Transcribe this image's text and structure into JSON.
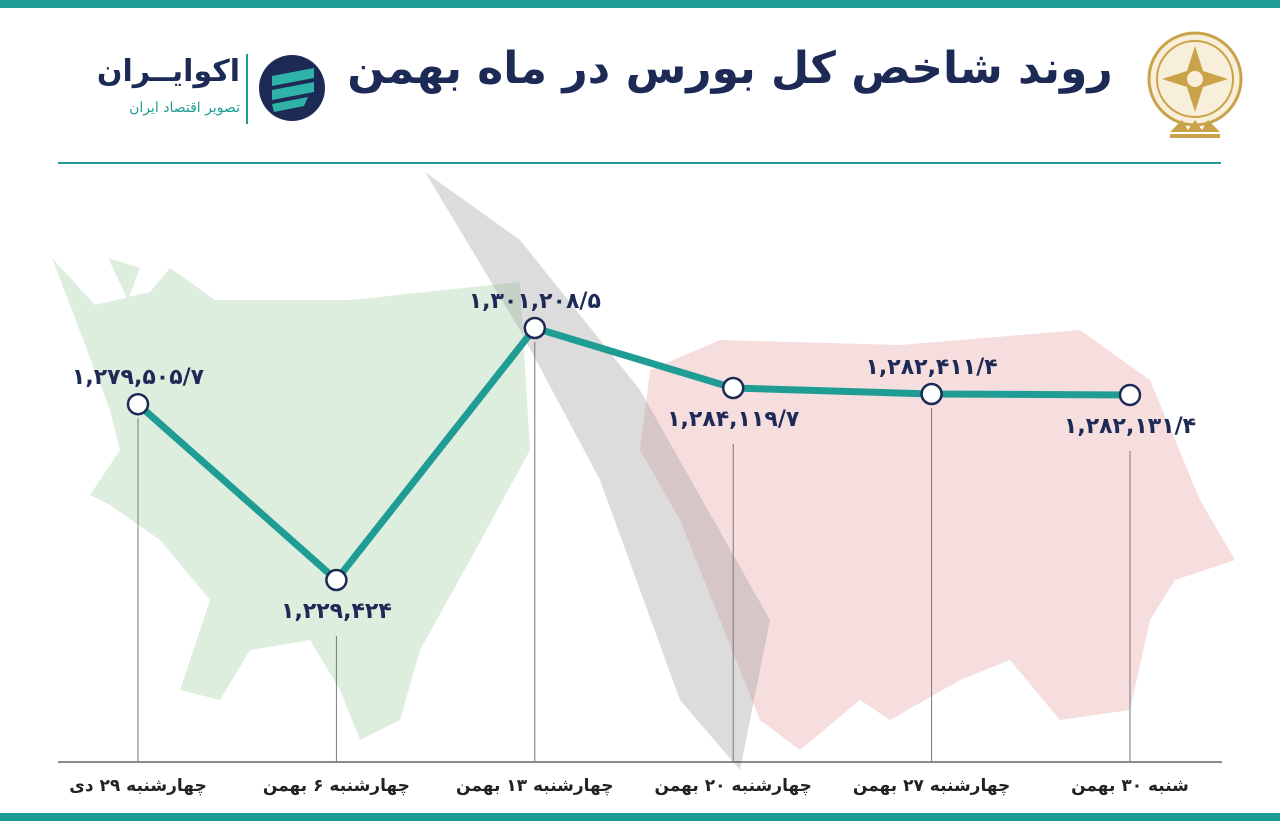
{
  "title": "روند شاخص کل بورس در ماه بهمن",
  "brand": {
    "name": "اکوایــران",
    "tagline": "تصویر اقتصاد ایران"
  },
  "colors": {
    "accent": "#1f9d95",
    "navy": "#1d2a56",
    "bull": "#d7ebd9",
    "bear": "#f5d7d8",
    "seal": "#c9a24a"
  },
  "icons": {
    "brand_logo": "ecoiran-logo-icon",
    "seal": "stock-exchange-seal-icon",
    "bull": "bull-silhouette",
    "bear": "bear-silhouette"
  },
  "chart_data": {
    "type": "line",
    "title": "روند شاخص کل بورس در ماه بهمن",
    "xlabel": "",
    "ylabel": "",
    "categories": [
      "چهارشنبه ۲۹ دی",
      "چهارشنبه ۶ بهمن",
      "چهارشنبه ۱۳ بهمن",
      "چهارشنبه ۲۰ بهمن",
      "چهارشنبه ۲۷ بهمن",
      "شنبه ۳۰ بهمن"
    ],
    "values": [
      1279505.7,
      1229424,
      1301208.5,
      1284119.7,
      1282411.4,
      1282131.4
    ],
    "labels": [
      "۱,۲۷۹,۵۰۵/۷",
      "۱,۲۲۹,۴۲۴",
      "۱,۳۰۱,۲۰۸/۵",
      "۱,۲۸۴,۱۱۹/۷",
      "۱,۲۸۲,۴۱۱/۴",
      "۱,۲۸۲,۱۳۱/۴"
    ],
    "label_position": [
      "above",
      "below",
      "above",
      "below",
      "above",
      "below"
    ],
    "ylim": [
      1229424,
      1301208.5
    ],
    "grid": false,
    "legend": "none"
  }
}
